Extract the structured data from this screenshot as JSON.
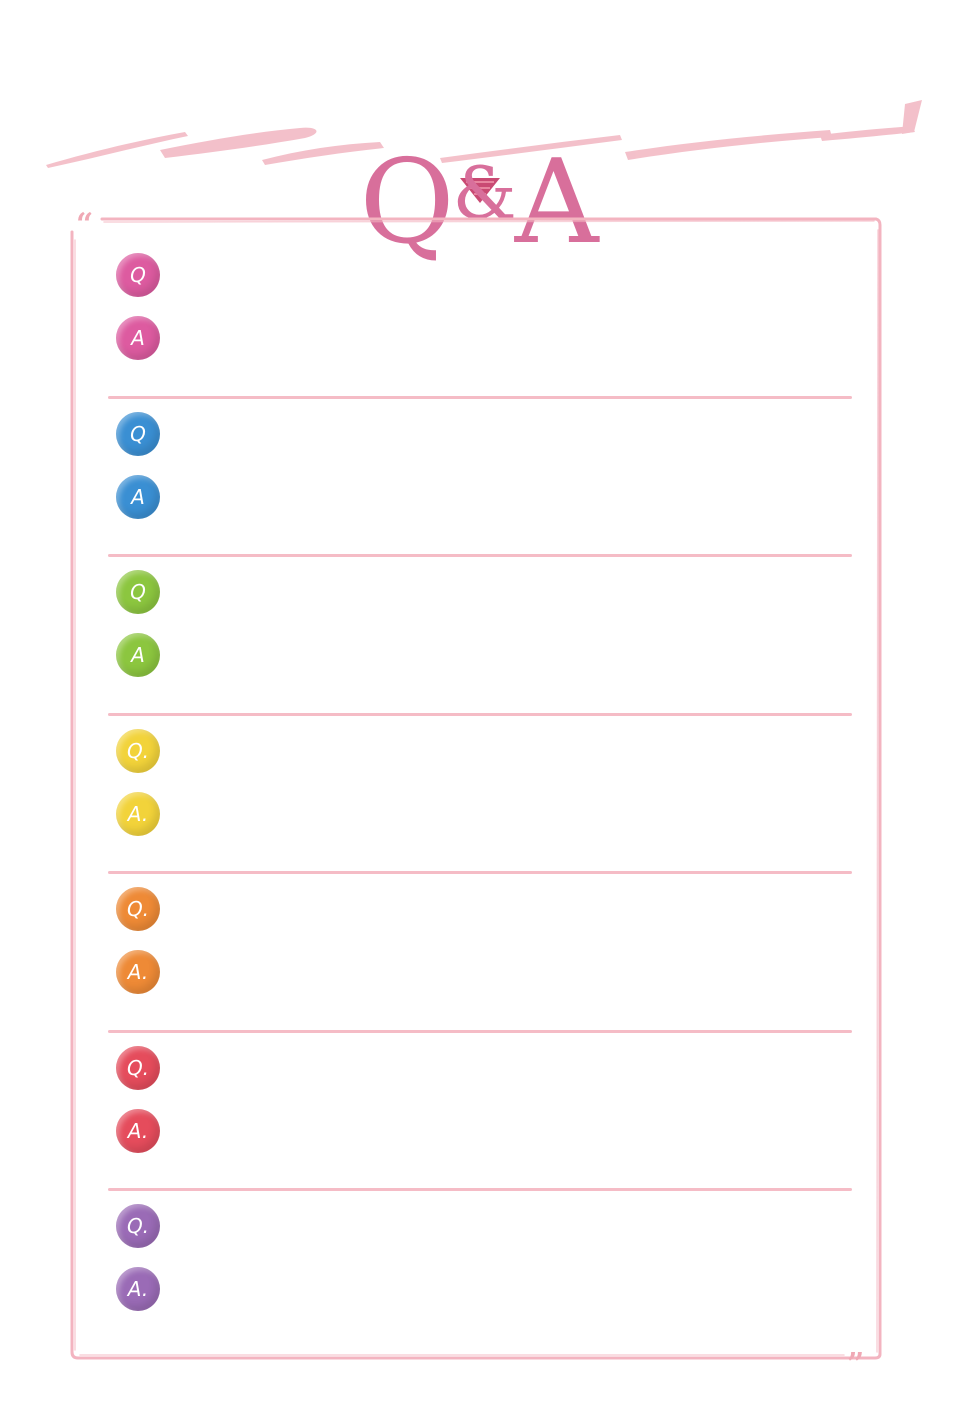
{
  "header": {
    "title_q": "Q",
    "title_amp": "&",
    "title_a": "A",
    "accent": "#d86f9b",
    "arrow_color": "#c94a73"
  },
  "frame": {
    "open_quote": "“",
    "close_quote": "”",
    "line_color": "#f5bcc6"
  },
  "qa_pairs": [
    {
      "q_label": "Q",
      "a_label": "A",
      "color": "#dd5ba0"
    },
    {
      "q_label": "Q",
      "a_label": "A",
      "color": "#3a8fd3"
    },
    {
      "q_label": "Q",
      "a_label": "A",
      "color": "#8cc63f"
    },
    {
      "q_label": "Q.",
      "a_label": "A.",
      "color": "#f2d33a"
    },
    {
      "q_label": "Q.",
      "a_label": "A.",
      "color": "#ee8a36"
    },
    {
      "q_label": "Q.",
      "a_label": "A.",
      "color": "#e54c5c"
    },
    {
      "q_label": "Q.",
      "a_label": "A.",
      "color": "#9a6bb6"
    }
  ]
}
